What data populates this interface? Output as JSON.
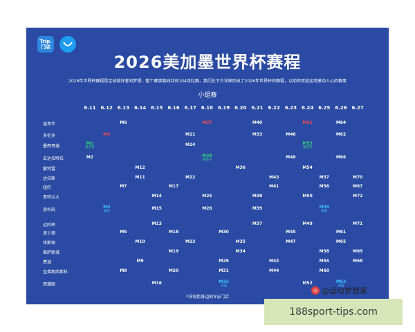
{
  "header": {
    "logo_text": "Trip.\n门店",
    "title": "2026美加墨世界杯赛程",
    "intro": "2026年世界杯赛程是足球爱好者的梦想，整个赛事期间共有104场比赛，我们在下方详细列出了2026年世界杯的赛程，以助你双迎这场激动人心的赛事",
    "stage": "小组赛"
  },
  "dates": [
    "6.11",
    "6.12",
    "6.13",
    "6.14",
    "6.15",
    "6.16",
    "6.17",
    "6.18",
    "6.19",
    "6.20",
    "6.21",
    "6.22",
    "6.23",
    "6.24",
    "6.25",
    "6.26",
    "6.27"
  ],
  "rows": [
    {
      "city": "温哥华",
      "matches": [
        {
          "d": 2,
          "t": "M6"
        },
        {
          "d": 7,
          "t": "M27",
          "c": "red"
        },
        {
          "d": 10,
          "t": "M40"
        },
        {
          "d": 13,
          "t": "M51",
          "c": "red"
        },
        {
          "d": 15,
          "t": "M64"
        }
      ]
    },
    {
      "city": "多伦多",
      "matches": [
        {
          "d": 1,
          "t": "M3",
          "c": "red"
        },
        {
          "d": 6,
          "t": "M21"
        },
        {
          "d": 10,
          "t": "M33"
        },
        {
          "d": 12,
          "t": "M46"
        },
        {
          "d": 15,
          "t": "M62"
        }
      ]
    },
    {
      "city": "墨西哥城",
      "matches": [
        {
          "d": 0,
          "t": "M1",
          "c": "green",
          "sub": "墨西哥"
        },
        {
          "d": 6,
          "t": "M24"
        },
        {
          "d": 13,
          "t": "M53",
          "c": "green",
          "sub": "墨西哥"
        }
      ]
    },
    {
      "city": "瓜达拉哈拉",
      "matches": [
        {
          "d": 0,
          "t": "M2"
        },
        {
          "d": 7,
          "t": "M28",
          "c": "green",
          "sub": "墨西哥"
        },
        {
          "d": 12,
          "t": "M48"
        },
        {
          "d": 15,
          "t": "M66"
        }
      ]
    },
    {
      "city": "蒙特雷",
      "matches": [
        {
          "d": 3,
          "t": "M12"
        },
        {
          "d": 9,
          "t": "M36"
        },
        {
          "d": 13,
          "t": "M54"
        }
      ]
    },
    {
      "city": "达拉斯",
      "matches": [
        {
          "d": 3,
          "t": "M11"
        },
        {
          "d": 6,
          "t": "M22"
        },
        {
          "d": 11,
          "t": "M43"
        },
        {
          "d": 14,
          "t": "M57"
        },
        {
          "d": 16,
          "t": "M70"
        }
      ]
    },
    {
      "city": "纽约",
      "matches": [
        {
          "d": 2,
          "t": "M7"
        },
        {
          "d": 5,
          "t": "M17"
        },
        {
          "d": 11,
          "t": "M41"
        },
        {
          "d": 14,
          "t": "M56"
        },
        {
          "d": 16,
          "t": "M67"
        }
      ]
    },
    {
      "city": "亚特兰大",
      "matches": [
        {
          "d": 4,
          "t": "M14"
        },
        {
          "d": 7,
          "t": "M25"
        },
        {
          "d": 10,
          "t": "M38"
        },
        {
          "d": 13,
          "t": "M50"
        },
        {
          "d": 16,
          "t": "M72"
        }
      ]
    },
    {
      "city": "洛杉矶",
      "matches": [
        {
          "d": 1,
          "t": "M4",
          "c": "cyan",
          "sub": "美国"
        },
        {
          "d": 4,
          "t": "M15"
        },
        {
          "d": 7,
          "t": "M26"
        },
        {
          "d": 10,
          "t": "M39"
        },
        {
          "d": 14,
          "t": "M59",
          "c": "cyan",
          "sub": "美国"
        }
      ]
    },
    {
      "city": "迈阿密",
      "matches": [
        {
          "d": 4,
          "t": "M13"
        },
        {
          "d": 10,
          "t": "M37"
        },
        {
          "d": 13,
          "t": "M49"
        },
        {
          "d": 16,
          "t": "M71"
        }
      ]
    },
    {
      "city": "波士顿",
      "matches": [
        {
          "d": 2,
          "t": "M5"
        },
        {
          "d": 5,
          "t": "M18"
        },
        {
          "d": 8,
          "t": "M30"
        },
        {
          "d": 12,
          "t": "M45"
        },
        {
          "d": 15,
          "t": "M61"
        }
      ]
    },
    {
      "city": "休斯顿",
      "matches": [
        {
          "d": 3,
          "t": "M10"
        },
        {
          "d": 6,
          "t": "M23"
        },
        {
          "d": 9,
          "t": "M35"
        },
        {
          "d": 12,
          "t": "M47"
        },
        {
          "d": 15,
          "t": "M65"
        }
      ]
    },
    {
      "city": "堪萨斯城",
      "matches": [
        {
          "d": 5,
          "t": "M19"
        },
        {
          "d": 9,
          "t": "M34"
        },
        {
          "d": 14,
          "t": "M58"
        },
        {
          "d": 16,
          "t": "M69"
        }
      ]
    },
    {
      "city": "费城",
      "matches": [
        {
          "d": 3,
          "t": "M9"
        },
        {
          "d": 8,
          "t": "M29"
        },
        {
          "d": 11,
          "t": "M42"
        },
        {
          "d": 14,
          "t": "M55"
        },
        {
          "d": 16,
          "t": "M68"
        }
      ]
    },
    {
      "city": "圣弗朗西斯科",
      "matches": [
        {
          "d": 2,
          "t": "M8"
        },
        {
          "d": 5,
          "t": "M20"
        },
        {
          "d": 8,
          "t": "M31"
        },
        {
          "d": 11,
          "t": "M44"
        },
        {
          "d": 14,
          "t": "M60"
        }
      ]
    },
    {
      "city": "西雅图",
      "matches": [
        {
          "d": 4,
          "t": "M16"
        },
        {
          "d": 8,
          "t": "M32",
          "c": "cyan",
          "sub": "美国"
        },
        {
          "d": 13,
          "t": "M52"
        },
        {
          "d": 15,
          "t": "M63",
          "c": "cyan",
          "sub": "美国"
        }
      ]
    }
  ],
  "footnote": "*详询您身边的Trip门店",
  "watermark": {
    "icon_glyph": "◎",
    "account": "@运动梦想家",
    "site": "188sport-tips.com"
  }
}
